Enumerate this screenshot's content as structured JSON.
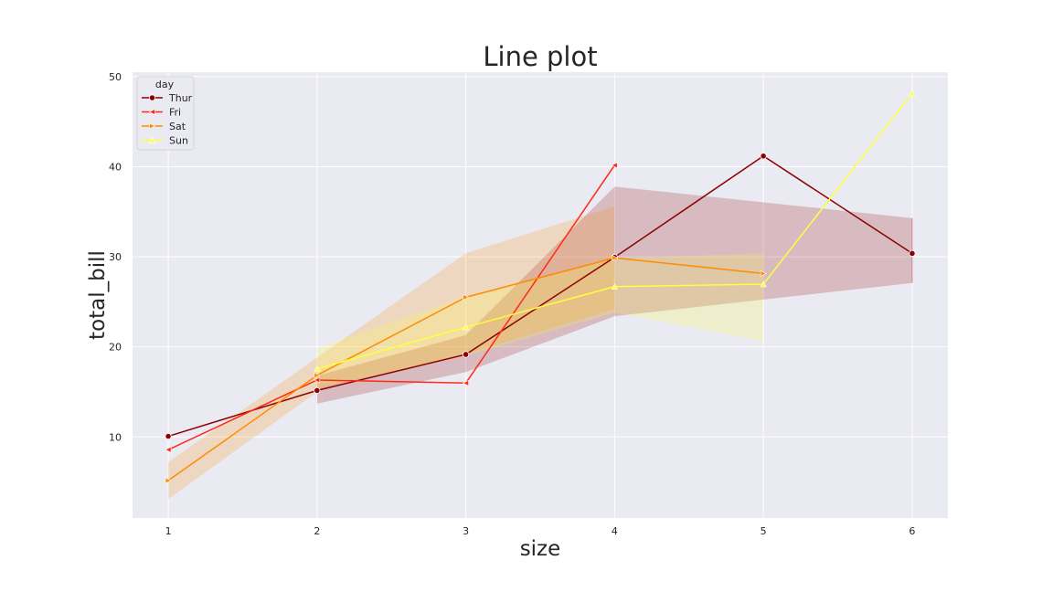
{
  "chart_data": {
    "type": "line",
    "title": "Line plot",
    "xlabel": "size",
    "ylabel": "total_bill",
    "xlim": [
      0.76,
      6.24
    ],
    "ylim": [
      1,
      50.5
    ],
    "x_ticks": [
      "1",
      "2",
      "3",
      "4",
      "5",
      "6"
    ],
    "y_ticks": [
      "10",
      "20",
      "30",
      "40",
      "50"
    ],
    "grid": true,
    "background": "#eaeaf2",
    "legend": {
      "title": "day",
      "placement": "top-left"
    },
    "series": [
      {
        "name": "Thur",
        "color": "#8b0000",
        "marker": "circle",
        "x": [
          1,
          2,
          3,
          4,
          5,
          6
        ],
        "y": [
          10.07,
          15.16,
          19.16,
          29.95,
          41.19,
          30.38
        ],
        "ci_low": [
          null,
          13.7,
          17.2,
          23.4,
          null,
          27.1
        ],
        "ci_high": [
          null,
          16.8,
          21.3,
          37.8,
          null,
          34.3
        ]
      },
      {
        "name": "Fri",
        "color": "#ff2a16",
        "marker": "triangle-left",
        "x": [
          1,
          2,
          3,
          4
        ],
        "y": [
          8.58,
          16.32,
          15.98,
          40.17
        ],
        "ci_low": [
          null,
          null,
          null,
          null
        ],
        "ci_high": [
          null,
          null,
          null,
          null
        ]
      },
      {
        "name": "Sat",
        "color": "#ff8c00",
        "marker": "triangle-right",
        "x": [
          1,
          2,
          3,
          4,
          5
        ],
        "y": [
          5.16,
          16.84,
          25.51,
          29.88,
          28.15
        ],
        "ci_low": [
          3.1,
          15.0,
          19.2,
          24.2,
          null
        ],
        "ci_high": [
          7.2,
          18.8,
          30.4,
          35.6,
          null
        ]
      },
      {
        "name": "Sun",
        "color": "#ffff3c",
        "marker": "triangle-up",
        "x": [
          2,
          3,
          4,
          5,
          6
        ],
        "y": [
          17.56,
          22.18,
          26.69,
          26.97,
          48.17
        ],
        "ci_low": [
          15.5,
          19.0,
          23.8,
          20.6,
          null
        ],
        "ci_high": [
          19.9,
          25.6,
          29.8,
          30.4,
          null
        ]
      }
    ]
  }
}
